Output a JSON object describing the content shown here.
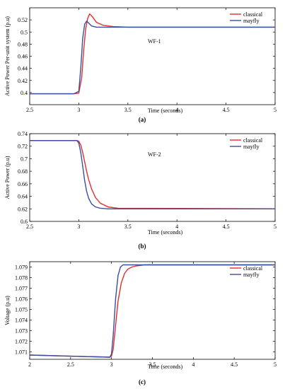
{
  "chart_data": [
    {
      "type": "line",
      "panel_label": "(a)",
      "annotation": "WF-1",
      "xlabel": "Time (seconds)",
      "ylabel": "Active Power Per-unit system (p.u)",
      "xlim": [
        2.5,
        5
      ],
      "ylim": [
        0.38,
        0.54
      ],
      "xticks": [
        "2.5",
        "3",
        "3.5",
        "4",
        "4.5",
        "5"
      ],
      "yticks": [
        "0.4",
        "0.42",
        "0.44",
        "0.46",
        "0.48",
        "0.5",
        "0.52"
      ],
      "legend_position": "top-right",
      "series": [
        {
          "name": "classical",
          "color": "#e03030",
          "x": [
            2.5,
            2.95,
            3.0,
            3.03,
            3.05,
            3.07,
            3.09,
            3.11,
            3.14,
            3.18,
            3.25,
            3.35,
            3.5,
            5.0
          ],
          "y": [
            0.398,
            0.398,
            0.399,
            0.425,
            0.47,
            0.505,
            0.522,
            0.53,
            0.525,
            0.516,
            0.511,
            0.509,
            0.508,
            0.508
          ]
        },
        {
          "name": "mayfly",
          "color": "#3a4fa0",
          "x": [
            2.5,
            2.95,
            3.0,
            3.02,
            3.04,
            3.06,
            3.08,
            3.1,
            3.13,
            3.18,
            3.25,
            5.0
          ],
          "y": [
            0.398,
            0.398,
            0.402,
            0.44,
            0.49,
            0.513,
            0.518,
            0.515,
            0.51,
            0.508,
            0.508,
            0.508
          ]
        }
      ]
    },
    {
      "type": "line",
      "panel_label": "(b)",
      "annotation": "WF-2",
      "xlabel": "Time (seconds)",
      "ylabel": "Active Power (p.u)",
      "xlim": [
        2.5,
        5
      ],
      "ylim": [
        0.6,
        0.74
      ],
      "xticks": [
        "2.5",
        "3",
        "3.5",
        "4",
        "4.5",
        "5"
      ],
      "yticks": [
        "0.6",
        "0.62",
        "0.64",
        "0.66",
        "0.68",
        "0.7",
        "0.72",
        "0.74"
      ],
      "legend_position": "top-right",
      "series": [
        {
          "name": "classical",
          "color": "#e03030",
          "x": [
            2.5,
            2.98,
            3.0,
            3.02,
            3.04,
            3.06,
            3.08,
            3.1,
            3.13,
            3.17,
            3.22,
            3.3,
            3.4,
            5.0
          ],
          "y": [
            0.729,
            0.729,
            0.728,
            0.722,
            0.71,
            0.695,
            0.68,
            0.667,
            0.652,
            0.638,
            0.629,
            0.623,
            0.621,
            0.62
          ]
        },
        {
          "name": "mayfly",
          "color": "#3a4fa0",
          "x": [
            2.5,
            2.98,
            3.0,
            3.02,
            3.04,
            3.06,
            3.08,
            3.1,
            3.13,
            3.17,
            3.22,
            3.3,
            5.0
          ],
          "y": [
            0.729,
            0.729,
            0.725,
            0.71,
            0.688,
            0.665,
            0.648,
            0.637,
            0.628,
            0.623,
            0.621,
            0.62,
            0.62
          ]
        }
      ]
    },
    {
      "type": "line",
      "panel_label": "(c)",
      "annotation": "",
      "xlabel": "Time (seconds)",
      "ylabel": "Voltage (p.u)",
      "xlim": [
        2,
        5
      ],
      "ylim": [
        1.0703,
        1.0795
      ],
      "xticks": [
        "2",
        "2.5",
        "3",
        "3.5",
        "4",
        "4.5",
        "5"
      ],
      "yticks": [
        "1.071",
        "1.072",
        "1.073",
        "1.074",
        "1.075",
        "1.076",
        "1.077",
        "1.078",
        "1.079"
      ],
      "legend_position": "top-right",
      "series": [
        {
          "name": "classical",
          "color": "#e03030",
          "x": [
            2.0,
            2.98,
            3.0,
            3.02,
            3.05,
            3.08,
            3.12,
            3.16,
            3.2,
            3.25,
            3.3,
            3.4,
            5.0
          ],
          "y": [
            1.0707,
            1.0705,
            1.0706,
            1.0712,
            1.0735,
            1.0758,
            1.0775,
            1.0784,
            1.0788,
            1.079,
            1.0791,
            1.0792,
            1.0792
          ]
        },
        {
          "name": "mayfly",
          "color": "#3a4fa0",
          "x": [
            2.0,
            2.98,
            3.0,
            3.02,
            3.05,
            3.08,
            3.11,
            3.14,
            3.18,
            3.25,
            5.0
          ],
          "y": [
            1.0707,
            1.0705,
            1.0708,
            1.0725,
            1.076,
            1.0782,
            1.079,
            1.0792,
            1.0792,
            1.0792,
            1.0792
          ]
        }
      ]
    }
  ]
}
